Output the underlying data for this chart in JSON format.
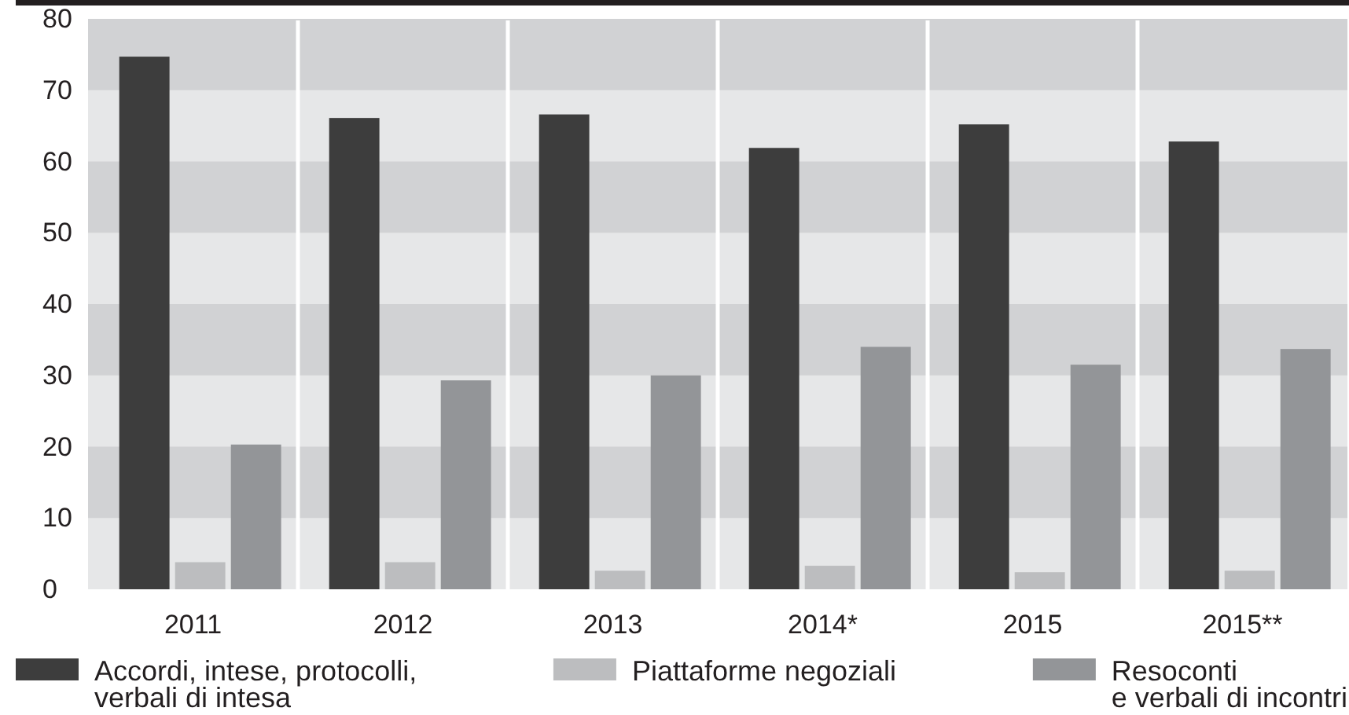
{
  "chart_data": {
    "type": "bar",
    "categories": [
      "2011",
      "2012",
      "2013",
      "2014*",
      "2015",
      "2015**"
    ],
    "series": [
      {
        "name": "Accordi, intese, protocolli,\nverbali di intesa",
        "color": "#3d3d3d",
        "values": [
          74.7,
          66.1,
          66.6,
          61.9,
          65.2,
          62.8
        ]
      },
      {
        "name": "Piattaforme negoziali",
        "color": "#bcbdbf",
        "values": [
          3.8,
          3.8,
          2.6,
          3.3,
          2.4,
          2.6
        ]
      },
      {
        "name": "Resoconti\ne verbali di incontri",
        "color": "#939598",
        "values": [
          20.3,
          29.3,
          30,
          34,
          31.5,
          33.7
        ]
      }
    ],
    "ylim": [
      0,
      80
    ],
    "yticks": [
      0,
      10,
      20,
      30,
      40,
      50,
      60,
      70,
      80
    ],
    "grid": true,
    "legend": "bottom"
  }
}
